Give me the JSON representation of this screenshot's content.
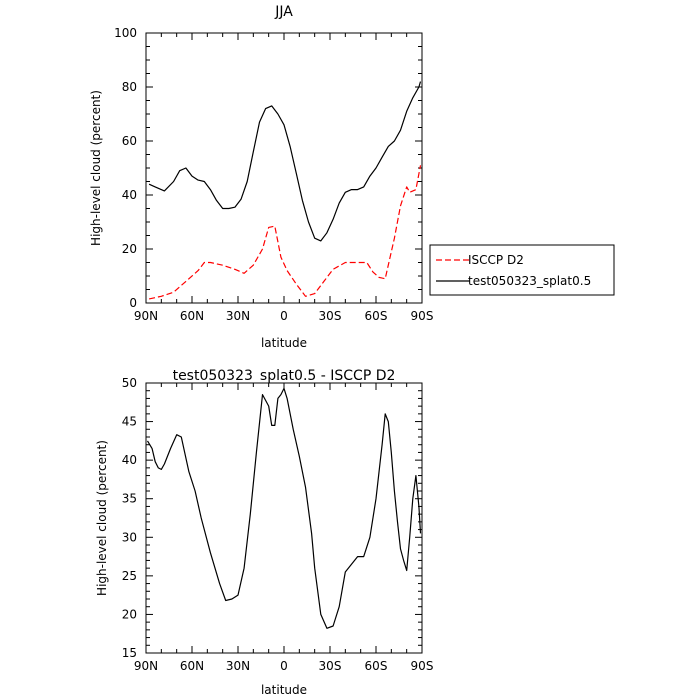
{
  "chart_data": [
    {
      "type": "line",
      "title": "JJA",
      "xlabel": "latitude",
      "ylabel": "High-level cloud (percent)",
      "xlim": [
        90,
        -90
      ],
      "ylim": [
        0,
        100
      ],
      "xticks": [
        90,
        60,
        30,
        0,
        -30,
        -60,
        -90
      ],
      "xtick_labels": [
        "90N",
        "60N",
        "30N",
        "0",
        "30S",
        "60S",
        "90S"
      ],
      "yticks": [
        0,
        20,
        40,
        60,
        80,
        100
      ],
      "ytick_labels": [
        "0",
        "20",
        "40",
        "60",
        "80",
        "100"
      ],
      "grid": false,
      "legend_position": "right-outside",
      "series": [
        {
          "name": "ISCCP D2",
          "color": "#ff0000",
          "dash": "dashed",
          "x": [
            88,
            80,
            72,
            64,
            56,
            52,
            48,
            40,
            32,
            26,
            20,
            14,
            10,
            6,
            2,
            -2,
            -8,
            -14,
            -20,
            -26,
            -32,
            -40,
            -48,
            -54,
            -58,
            -62,
            -66,
            -72,
            -76,
            -80,
            -82,
            -86,
            -89
          ],
          "y": [
            1.5,
            2.5,
            4,
            8,
            12,
            15,
            15,
            14,
            12.5,
            11,
            14,
            20,
            28,
            28.5,
            17,
            12,
            7,
            2.5,
            3.5,
            8,
            12.5,
            15,
            15,
            15,
            11.5,
            9.5,
            9,
            24,
            36,
            43,
            41,
            42,
            51
          ]
        },
        {
          "name": "test050323_splat0.5",
          "color": "#000000",
          "dash": "solid",
          "x": [
            88,
            84,
            78,
            72,
            68,
            64,
            60,
            56,
            52,
            48,
            44,
            40,
            36,
            32,
            28,
            24,
            20,
            16,
            12,
            8,
            4,
            0,
            -4,
            -8,
            -12,
            -16,
            -20,
            -24,
            -28,
            -32,
            -36,
            -40,
            -44,
            -48,
            -52,
            -56,
            -60,
            -64,
            -68,
            -72,
            -76,
            -80,
            -84,
            -88,
            -89
          ],
          "y": [
            44,
            43,
            41.5,
            45,
            49,
            50,
            47,
            45.5,
            45,
            42,
            38,
            35,
            35,
            35.5,
            38.5,
            45,
            56,
            67,
            72,
            73,
            70,
            66,
            58,
            48,
            38,
            30,
            24,
            23,
            26,
            31,
            37,
            41,
            42,
            42,
            43,
            47,
            50,
            54,
            58,
            60,
            64,
            71,
            76,
            80,
            82
          ]
        }
      ]
    },
    {
      "type": "line",
      "title": "test050323_splat0.5 - ISCCP D2",
      "xlabel": "latitude",
      "ylabel": "High-level cloud (percent)",
      "xlim": [
        90,
        -90
      ],
      "ylim": [
        15,
        50
      ],
      "xticks": [
        90,
        60,
        30,
        0,
        -30,
        -60,
        -90
      ],
      "xtick_labels": [
        "90N",
        "60N",
        "30N",
        "0",
        "30S",
        "60S",
        "90S"
      ],
      "yticks": [
        15,
        20,
        25,
        30,
        35,
        40,
        45,
        50
      ],
      "ytick_labels": [
        "15",
        "20",
        "25",
        "30",
        "35",
        "40",
        "45",
        "50"
      ],
      "grid": false,
      "series": [
        {
          "color": "#000000",
          "dash": "solid",
          "x": [
            89,
            86,
            84,
            82,
            80,
            78,
            74,
            70,
            67,
            62,
            58,
            54,
            48,
            42,
            38,
            34,
            30,
            26,
            22,
            18,
            14,
            10,
            8,
            6,
            4,
            2,
            0,
            -2,
            -6,
            -10,
            -14,
            -18,
            -20,
            -24,
            -28,
            -32,
            -36,
            -40,
            -44,
            -48,
            -52,
            -56,
            -60,
            -64,
            -66,
            -68,
            -70,
            -72,
            -74,
            -76,
            -78,
            -80,
            -82,
            -84,
            -86,
            -88,
            -89
          ],
          "y": [
            42.5,
            41.5,
            39.8,
            39,
            38.8,
            39.5,
            41.5,
            43.3,
            43,
            38.5,
            36,
            32.5,
            28,
            24,
            21.8,
            22,
            22.5,
            26,
            33,
            41,
            48.5,
            47,
            44.5,
            44.5,
            48,
            48.5,
            49.3,
            48,
            44,
            40.5,
            36.5,
            30.5,
            26,
            20,
            18.2,
            18.5,
            21,
            25.5,
            26.5,
            27.5,
            27.5,
            30,
            35,
            42,
            46,
            45,
            41,
            36,
            32,
            28.5,
            27,
            25.7,
            30,
            35,
            38,
            34,
            30.5
          ]
        }
      ]
    }
  ]
}
